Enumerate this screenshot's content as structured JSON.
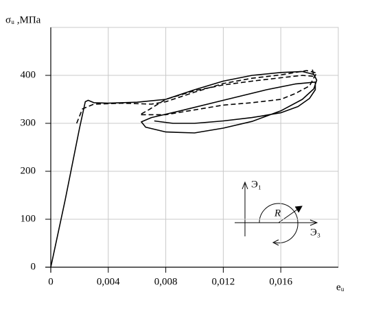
{
  "chart_data": {
    "type": "line",
    "ylabel": "σᵤ ,МПа",
    "xlabel": "eᵤ",
    "annotations": [
      "Э₁",
      "R",
      "Э₃"
    ],
    "xlim": [
      0,
      0.02
    ],
    "ylim": [
      0,
      500
    ],
    "xticks": [
      0,
      {
        "value": 0.004,
        "label": "0,004"
      },
      {
        "value": 0.008,
        "label": "0,008"
      },
      {
        "value": 0.012,
        "label": "0,012"
      },
      {
        "value": 0.016,
        "label": "0,016"
      }
    ],
    "yticks": [
      0,
      100,
      200,
      300,
      400
    ],
    "grid": true,
    "series": [
      {
        "color": "#000000",
        "dashed": false,
        "x": [
          0,
          0.001,
          0.002,
          0.0024,
          0.0026,
          0.003,
          0.004,
          0.006,
          0.008,
          0.01,
          0.012,
          0.014,
          0.016,
          0.0175,
          0.0183,
          0.0185,
          0.0183,
          0.0175,
          0.016,
          0.014,
          0.012,
          0.01,
          0.008,
          0.0066,
          0.0063,
          0.007,
          0.009,
          0.012,
          0.015,
          0.017,
          0.0184,
          0.0184,
          0.018,
          0.0172,
          0.016,
          0.014,
          0.012,
          0.01,
          0.0085,
          0.0072
        ],
        "values": [
          0,
          140,
          290,
          345,
          348,
          343,
          342,
          344,
          350,
          370,
          388,
          400,
          406,
          408,
          402,
          390,
          372,
          350,
          326,
          304,
          290,
          280,
          282,
          292,
          303,
          312,
          326,
          348,
          370,
          382,
          386,
          370,
          352,
          335,
          322,
          312,
          305,
          300,
          300,
          305
        ]
      },
      {
        "color": "#000000",
        "dashed": true,
        "x": [
          0.0018,
          0.0022,
          0.003,
          0.005,
          0.007,
          0.008,
          0.01,
          0.012,
          0.014,
          0.016,
          0.0178,
          0.0185,
          0.0183,
          0.018,
          0.017,
          0.016,
          0.014,
          0.012,
          0.01,
          0.008,
          0.0062,
          0.0068,
          0.008,
          0.01,
          0.012,
          0.014,
          0.016,
          0.0175,
          0.0183,
          0.0182
        ],
        "values": [
          300,
          330,
          340,
          342,
          340,
          345,
          365,
          383,
          394,
          401,
          410,
          405,
          395,
          378,
          362,
          350,
          343,
          338,
          328,
          318,
          318,
          328,
          350,
          368,
          380,
          388,
          395,
          400,
          398,
          412
        ]
      }
    ]
  }
}
